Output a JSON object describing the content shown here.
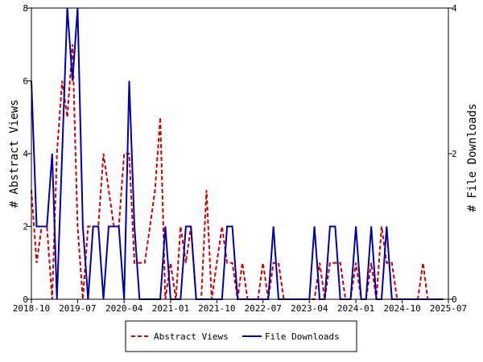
{
  "chart_data": {
    "type": "line",
    "x_tick_labels": [
      "2018-10",
      "2019-07",
      "2020-04",
      "2021-01",
      "2021-10",
      "2022-07",
      "2023-04",
      "2024-01",
      "2024-10",
      "2025-07"
    ],
    "x_tick_dates": [
      "2018-10-01",
      "2019-07-01",
      "2020-04-01",
      "2021-01-01",
      "2021-10-01",
      "2022-07-01",
      "2023-04-01",
      "2024-01-01",
      "2024-10-01",
      "2025-07-01"
    ],
    "xlim": [
      "2018-10-01",
      "2025-07-01"
    ],
    "y_left": {
      "label": "# Abstract Views",
      "ticks": [
        0,
        2,
        4,
        6,
        8
      ],
      "ylim": [
        0,
        8
      ]
    },
    "y_right": {
      "label": "# File Downloads",
      "ticks": [
        0,
        2,
        4
      ],
      "ylim": [
        0,
        4
      ]
    },
    "legend_position": "bottom-center",
    "grid": false,
    "series": [
      {
        "name": "Abstract Views",
        "axis": "left",
        "color": "#cc0000",
        "style": "dashed",
        "points": [
          [
            "2018-10-01",
            3
          ],
          [
            "2018-11-01",
            1
          ],
          [
            "2018-12-01",
            2
          ],
          [
            "2019-01-01",
            2
          ],
          [
            "2019-02-01",
            0
          ],
          [
            "2019-03-01",
            4
          ],
          [
            "2019-04-01",
            6
          ],
          [
            "2019-05-01",
            5
          ],
          [
            "2019-06-01",
            7
          ],
          [
            "2019-07-01",
            2
          ],
          [
            "2019-08-01",
            0
          ],
          [
            "2019-09-01",
            2
          ],
          [
            "2019-10-01",
            2
          ],
          [
            "2019-11-01",
            2
          ],
          [
            "2019-12-01",
            4
          ],
          [
            "2020-01-01",
            3
          ],
          [
            "2020-02-01",
            2
          ],
          [
            "2020-03-01",
            2
          ],
          [
            "2020-04-01",
            4
          ],
          [
            "2020-05-01",
            4
          ],
          [
            "2020-06-01",
            1
          ],
          [
            "2020-07-01",
            1
          ],
          [
            "2020-08-01",
            1
          ],
          [
            "2020-09-01",
            2
          ],
          [
            "2020-10-01",
            3
          ],
          [
            "2020-11-01",
            5
          ],
          [
            "2020-12-01",
            0
          ],
          [
            "2021-01-01",
            1
          ],
          [
            "2021-02-01",
            0
          ],
          [
            "2021-03-01",
            2
          ],
          [
            "2021-04-01",
            1
          ],
          [
            "2021-05-01",
            2
          ],
          [
            "2021-06-01",
            0
          ],
          [
            "2021-07-01",
            0
          ],
          [
            "2021-08-01",
            3
          ],
          [
            "2021-09-01",
            0
          ],
          [
            "2021-10-01",
            1
          ],
          [
            "2021-11-01",
            2
          ],
          [
            "2021-12-01",
            1
          ],
          [
            "2022-01-01",
            1
          ],
          [
            "2022-02-01",
            0
          ],
          [
            "2022-03-01",
            1
          ],
          [
            "2022-04-01",
            0
          ],
          [
            "2022-05-01",
            0
          ],
          [
            "2022-06-01",
            0
          ],
          [
            "2022-07-01",
            1
          ],
          [
            "2022-08-01",
            0
          ],
          [
            "2022-09-01",
            1
          ],
          [
            "2022-10-01",
            1
          ],
          [
            "2022-11-01",
            0
          ],
          [
            "2022-12-01",
            0
          ],
          [
            "2023-01-01",
            0
          ],
          [
            "2023-02-01",
            0
          ],
          [
            "2023-03-01",
            0
          ],
          [
            "2023-04-01",
            0
          ],
          [
            "2023-05-01",
            0
          ],
          [
            "2023-06-01",
            1
          ],
          [
            "2023-07-01",
            0
          ],
          [
            "2023-08-01",
            1
          ],
          [
            "2023-09-01",
            1
          ],
          [
            "2023-10-01",
            1
          ],
          [
            "2023-11-01",
            0
          ],
          [
            "2023-12-01",
            0
          ],
          [
            "2024-01-01",
            1
          ],
          [
            "2024-02-01",
            0
          ],
          [
            "2024-03-01",
            0
          ],
          [
            "2024-04-01",
            1
          ],
          [
            "2024-05-01",
            0
          ],
          [
            "2024-06-01",
            2
          ],
          [
            "2024-07-01",
            1
          ],
          [
            "2024-08-01",
            1
          ],
          [
            "2024-09-01",
            0
          ],
          [
            "2024-10-01",
            0
          ],
          [
            "2024-11-01",
            0
          ],
          [
            "2024-12-01",
            0
          ],
          [
            "2025-01-01",
            0
          ],
          [
            "2025-02-01",
            1
          ],
          [
            "2025-03-01",
            0
          ],
          [
            "2025-04-01",
            0
          ]
        ]
      },
      {
        "name": "File Downloads",
        "axis": "right",
        "color": "#0000aa",
        "style": "solid",
        "points": [
          [
            "2018-10-01",
            3
          ],
          [
            "2018-11-01",
            1
          ],
          [
            "2018-12-01",
            1
          ],
          [
            "2019-01-01",
            1
          ],
          [
            "2019-02-01",
            2
          ],
          [
            "2019-03-01",
            0
          ],
          [
            "2019-04-01",
            2
          ],
          [
            "2019-05-01",
            4
          ],
          [
            "2019-06-01",
            3
          ],
          [
            "2019-07-01",
            4
          ],
          [
            "2019-08-01",
            1
          ],
          [
            "2019-09-01",
            0
          ],
          [
            "2019-10-01",
            1
          ],
          [
            "2019-11-01",
            1
          ],
          [
            "2019-12-01",
            0
          ],
          [
            "2020-01-01",
            1
          ],
          [
            "2020-02-01",
            1
          ],
          [
            "2020-03-01",
            1
          ],
          [
            "2020-04-01",
            0
          ],
          [
            "2020-05-01",
            3
          ],
          [
            "2020-06-01",
            1
          ],
          [
            "2020-07-01",
            0
          ],
          [
            "2020-08-01",
            0
          ],
          [
            "2020-09-01",
            0
          ],
          [
            "2020-10-01",
            0
          ],
          [
            "2020-11-01",
            0
          ],
          [
            "2020-12-01",
            1
          ],
          [
            "2021-01-01",
            0
          ],
          [
            "2021-02-01",
            0
          ],
          [
            "2021-03-01",
            0
          ],
          [
            "2021-04-01",
            1
          ],
          [
            "2021-05-01",
            1
          ],
          [
            "2021-06-01",
            0
          ],
          [
            "2021-07-01",
            0
          ],
          [
            "2021-08-01",
            0
          ],
          [
            "2021-09-01",
            0
          ],
          [
            "2021-10-01",
            0
          ],
          [
            "2021-11-01",
            0
          ],
          [
            "2021-12-01",
            1
          ],
          [
            "2022-01-01",
            1
          ],
          [
            "2022-02-01",
            0
          ],
          [
            "2022-03-01",
            0
          ],
          [
            "2022-04-01",
            0
          ],
          [
            "2022-05-01",
            0
          ],
          [
            "2022-06-01",
            0
          ],
          [
            "2022-07-01",
            0
          ],
          [
            "2022-08-01",
            0
          ],
          [
            "2022-09-01",
            1
          ],
          [
            "2022-10-01",
            0
          ],
          [
            "2022-11-01",
            0
          ],
          [
            "2022-12-01",
            0
          ],
          [
            "2023-01-01",
            0
          ],
          [
            "2023-02-01",
            0
          ],
          [
            "2023-03-01",
            0
          ],
          [
            "2023-04-01",
            0
          ],
          [
            "2023-05-01",
            1
          ],
          [
            "2023-06-01",
            0
          ],
          [
            "2023-07-01",
            0
          ],
          [
            "2023-08-01",
            1
          ],
          [
            "2023-09-01",
            1
          ],
          [
            "2023-10-01",
            0
          ],
          [
            "2023-11-01",
            0
          ],
          [
            "2023-12-01",
            0
          ],
          [
            "2024-01-01",
            1
          ],
          [
            "2024-02-01",
            0
          ],
          [
            "2024-03-01",
            0
          ],
          [
            "2024-04-01",
            1
          ],
          [
            "2024-05-01",
            0
          ],
          [
            "2024-06-01",
            0
          ],
          [
            "2024-07-01",
            1
          ],
          [
            "2024-08-01",
            0
          ],
          [
            "2024-09-01",
            0
          ],
          [
            "2024-10-01",
            0
          ],
          [
            "2024-11-01",
            0
          ],
          [
            "2024-12-01",
            0
          ],
          [
            "2025-01-01",
            0
          ],
          [
            "2025-02-01",
            0
          ],
          [
            "2025-03-01",
            0
          ],
          [
            "2025-04-01",
            0
          ],
          [
            "2025-05-01",
            0
          ],
          [
            "2025-06-01",
            0
          ]
        ]
      }
    ]
  }
}
